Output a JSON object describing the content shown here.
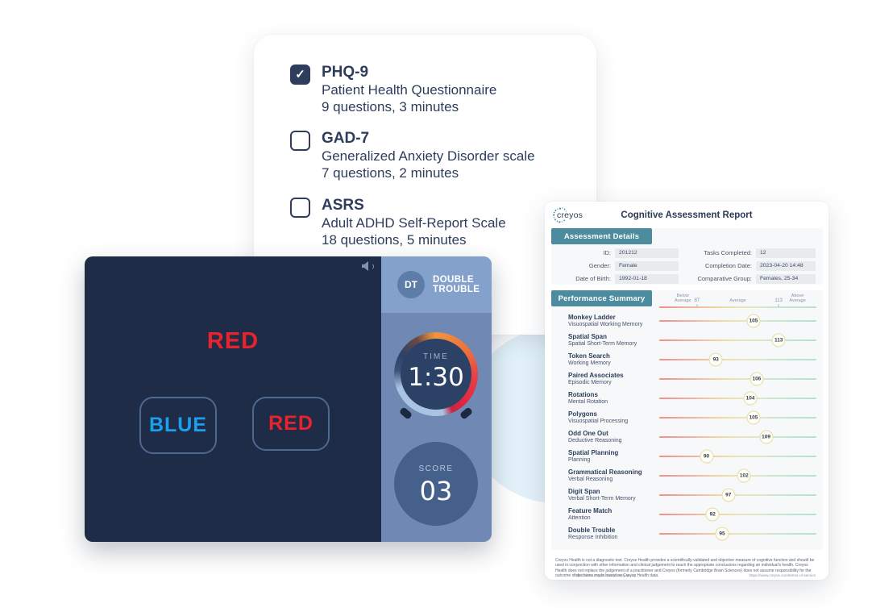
{
  "icons": {
    "check": "✓",
    "mute": "speaker-icon"
  },
  "colors": {
    "navy": "#2e3d5b",
    "teal": "#4c8c9e",
    "game_bg": "#1f2c47",
    "sidebar": "#6f89b4",
    "sidebar_top": "#84a1cb",
    "stimulus_red": "#e8232e",
    "button_blue": "#19a0f0",
    "score_circle": "#46608c",
    "blob": "#e2f1f9",
    "badge_border": "#e6dca8"
  },
  "checklist": {
    "items": [
      {
        "code": "PHQ-9",
        "name": "Patient Health Questionnaire",
        "meta": "9 questions, 3 minutes",
        "checked": true
      },
      {
        "code": "GAD-7",
        "name": "Generalized Anxiety Disorder scale",
        "meta": "7 questions, 2 minutes",
        "checked": false
      },
      {
        "code": "ASRS",
        "name": "Adult ADHD Self-Report Scale",
        "meta": "18 questions, 5 minutes",
        "checked": false
      }
    ]
  },
  "game": {
    "logo_abbr": "DT",
    "title_line1": "DOUBLE",
    "title_line2": "TROUBLE",
    "stimulus": "RED",
    "buttons": [
      {
        "label": "BLUE"
      },
      {
        "label": "RED"
      }
    ],
    "timer": {
      "label": "TIME",
      "value": "1:30"
    },
    "score": {
      "label": "SCORE",
      "value": "03"
    }
  },
  "report": {
    "brand": "creyos",
    "title": "Cognitive Assessment Report",
    "section_details": "Assessment Details",
    "section_summary": "Performance Summary",
    "details": {
      "left": [
        {
          "label": "ID:",
          "value": "201212"
        },
        {
          "label": "Gender:",
          "value": "Female"
        },
        {
          "label": "Date of Birth:",
          "value": "1992-01-18"
        }
      ],
      "right": [
        {
          "label": "Tasks Completed:",
          "value": "12"
        },
        {
          "label": "Completion Date:",
          "value": "2023-04-20 14:48"
        },
        {
          "label": "Comparative Group:",
          "value": "Females, 25-34"
        }
      ]
    },
    "scale": {
      "below": "Below Average",
      "average": "Average",
      "above": "Above Average",
      "low_tick": "87",
      "high_tick": "113",
      "min": 75,
      "max": 125
    },
    "rows": [
      {
        "task": "Monkey Ladder",
        "domain": "Visuospatial Working Memory",
        "score": 105
      },
      {
        "task": "Spatial Span",
        "domain": "Spatial Short-Term Memory",
        "score": 113
      },
      {
        "task": "Token Search",
        "domain": "Working Memory",
        "score": 93
      },
      {
        "task": "Paired Associates",
        "domain": "Episodic Memory",
        "score": 106
      },
      {
        "task": "Rotations",
        "domain": "Mental Rotation",
        "score": 104
      },
      {
        "task": "Polygons",
        "domain": "Visuospatial Processing",
        "score": 105
      },
      {
        "task": "Odd One Out",
        "domain": "Deductive Reasoning",
        "score": 109
      },
      {
        "task": "Spatial Planning",
        "domain": "Planning",
        "score": 90
      },
      {
        "task": "Grammatical Reasoning",
        "domain": "Verbal Reasoning",
        "score": 102
      },
      {
        "task": "Digit Span",
        "domain": "Verbal Short-Term Memory",
        "score": 97
      },
      {
        "task": "Feature Match",
        "domain": "Attention",
        "score": 92
      },
      {
        "task": "Double Trouble",
        "domain": "Response Inhibition",
        "score": 95
      }
    ],
    "footer": {
      "disclaimer": "Creyos Health is not a diagnostic tool. Creyos Health provides a scientifically-validated and objective measure of cognitive function and should be used in conjunction with other information and clinical judgement to reach the appropriate conclusions regarding an individual's health. Creyos Health does not replace the judgement of a practitioner and Creyos (formerly Cambridge Brain Sciences) does not assume responsibility for the outcome of decisions made based on Creyos Health data.",
      "link_left": "https://www.creyos.com/privacy-policy",
      "link_right": "https://www.creyos.com/terms-of-service"
    }
  }
}
